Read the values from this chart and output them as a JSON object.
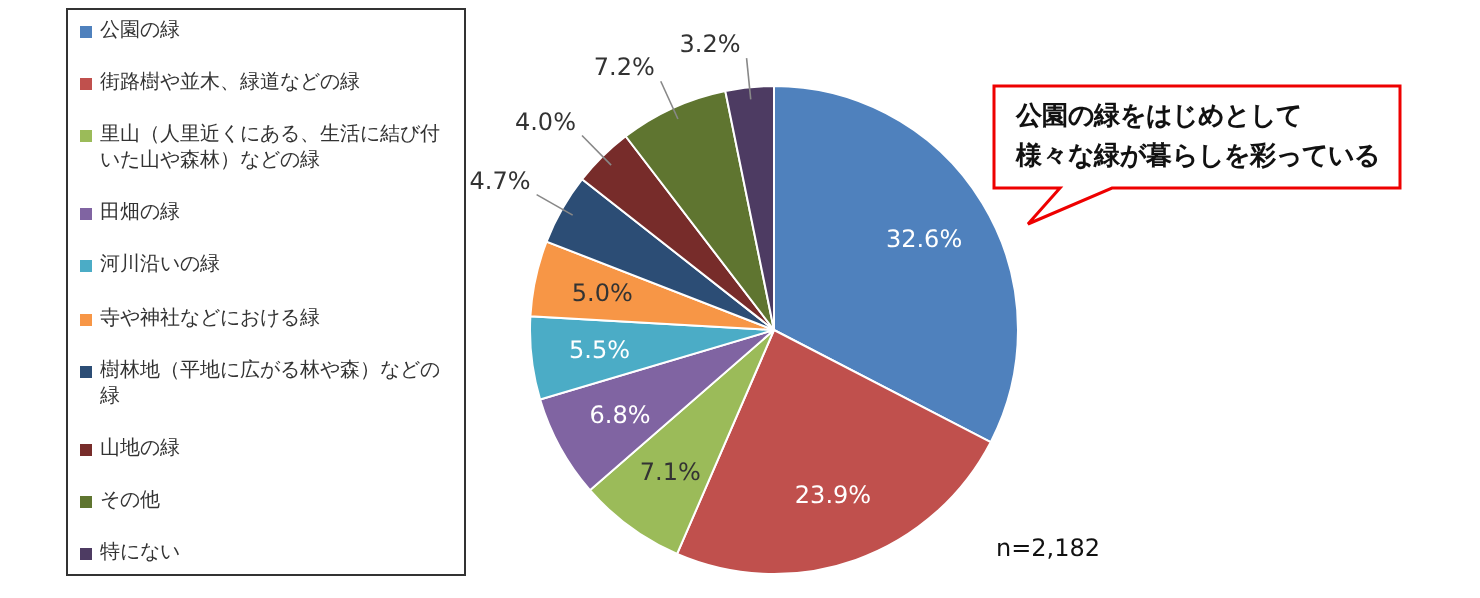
{
  "chart_data": {
    "type": "pie",
    "categories": [
      "公園の緑",
      "街路樹や並木、緑道などの緑",
      "里山（人里近くにある、生活に結び付いた山や森林）などの緑",
      "田畑の緑",
      "河川沿いの緑",
      "寺や神社などにおける緑",
      "樹林地（平地に広がる林や森）などの緑",
      "山地の緑",
      "その他",
      "特にない"
    ],
    "values": [
      32.6,
      23.9,
      7.1,
      6.8,
      5.5,
      5.0,
      4.7,
      4.0,
      7.2,
      3.2
    ],
    "colors": [
      "#4f81bd",
      "#c0504d",
      "#9bbb59",
      "#8064a2",
      "#4bacc6",
      "#f79646",
      "#2c4d75",
      "#772c2a",
      "#5f7530",
      "#4d3b62"
    ],
    "value_labels": [
      "32.6%",
      "23.9%",
      "7.1%",
      "6.8%",
      "5.5%",
      "5.0%",
      "4.7%",
      "4.0%",
      "7.2%",
      "3.2%"
    ],
    "legend": "left",
    "annotations": [
      "公園の緑をはじめとして",
      "様々な緑が暮らしを彩っている",
      "n=2,182"
    ]
  }
}
